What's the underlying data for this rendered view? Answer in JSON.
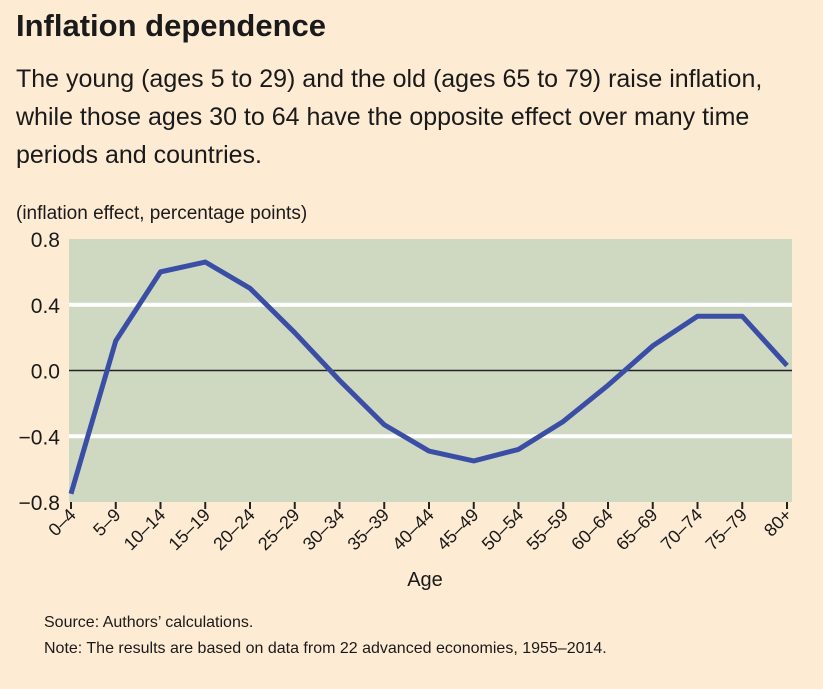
{
  "chart_data": {
    "type": "line",
    "title": "Inflation dependence",
    "subtitle": "The young (ages 5 to 29) and the old (ages 65 to 79) raise inflation, while those ages 30 to 64 have the opposite effect over many time periods and countries.",
    "ylabel": "(inflation effect, percentage points)",
    "xlabel": "Age",
    "ylim": [
      -0.8,
      0.8
    ],
    "yticks": [
      0.8,
      0.4,
      0.0,
      -0.4,
      -0.8
    ],
    "ytick_labels": [
      "0.8",
      "0.4",
      "0.0",
      "-0.4",
      "-0.8"
    ],
    "categories": [
      "0–4",
      "5–9",
      "10–14",
      "15–19",
      "20–24",
      "25–29",
      "30–34",
      "35–39",
      "40–44",
      "45–49",
      "50–54",
      "55–59",
      "60–64",
      "65–69",
      "70–74",
      "75–79",
      "80+"
    ],
    "series": [
      {
        "name": "Inflation effect",
        "color": "#3a4ea6",
        "values": [
          -0.75,
          0.18,
          0.6,
          0.66,
          0.5,
          0.23,
          -0.06,
          -0.33,
          -0.49,
          -0.55,
          -0.48,
          -0.31,
          -0.09,
          0.15,
          0.33,
          0.33,
          0.03
        ]
      }
    ],
    "grid": true,
    "source": "Source: Authors’ calculations.",
    "note": "Note: The results are based on data from 22 advanced economies, 1955–2014."
  }
}
